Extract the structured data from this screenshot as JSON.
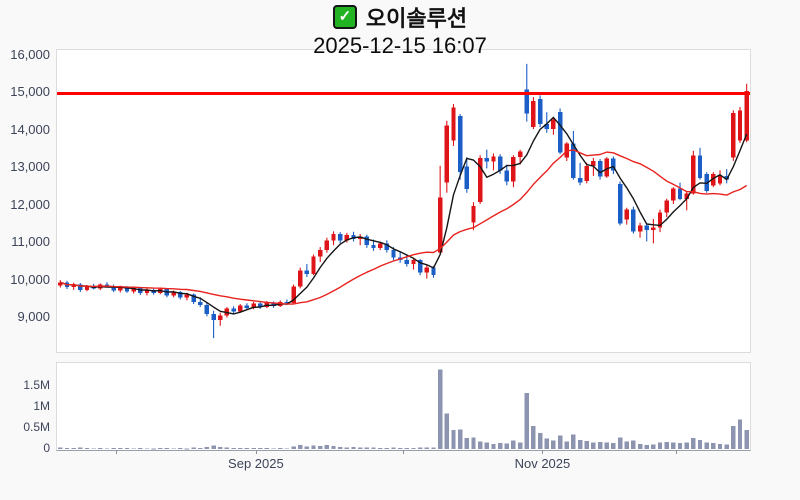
{
  "header": {
    "title": "오이솔루션",
    "subtitle": "2025-12-15 16:07",
    "checkbox_glyph": "✓"
  },
  "colors": {
    "background": "#f9f9f9",
    "panel_bg": "#ffffff",
    "panel_border": "#dcdcdc",
    "axis_text": "#3c4458",
    "up": "#df1418",
    "down": "#1b5ec6",
    "volume_bar": "#8c94b0",
    "ma_fast": "#161616",
    "ma_slow": "#e8231f",
    "alert_line": "#ff0000",
    "checkbox_green": "#22b322"
  },
  "chart_data": {
    "type": "candlestick-with-volume",
    "title": "오이솔루션",
    "timestamp": "2025-12-15 16:07",
    "legend_position": "none",
    "grid": false,
    "price_axis": {
      "tick_labels": [
        "16,000",
        "15,000",
        "14,000",
        "13,000",
        "12,000",
        "11,000",
        "10,000",
        "9,000"
      ],
      "tick_values": [
        16000,
        15000,
        14000,
        13000,
        12000,
        11000,
        10000,
        9000
      ],
      "y_min": 8100,
      "y_max": 16160
    },
    "volume_axis": {
      "tick_labels": [
        "1.5M",
        "1M",
        "0.5M",
        "0"
      ],
      "tick_values": [
        1500000,
        1000000,
        500000,
        0
      ],
      "v_max": 2050000
    },
    "x_axis": {
      "labels": [
        {
          "month": "09",
          "label": "Sep 2025"
        },
        {
          "month": "11",
          "label": "Nov 2025"
        }
      ]
    },
    "alert_line": {
      "price": 15000,
      "width": 3
    },
    "moving_averages": [
      {
        "name": "ma-fast",
        "window": 5
      },
      {
        "name": "ma-slow",
        "window": 20
      }
    ],
    "candles_format": [
      "date",
      "open",
      "high",
      "low",
      "close",
      "volume"
    ],
    "candles": [
      [
        "07-21",
        9870,
        10020,
        9820,
        9960,
        35000
      ],
      [
        "07-22",
        9960,
        10000,
        9780,
        9830,
        28000
      ],
      [
        "07-23",
        9830,
        9950,
        9760,
        9900,
        22000
      ],
      [
        "07-24",
        9900,
        9940,
        9700,
        9760,
        30000
      ],
      [
        "07-25",
        9760,
        9890,
        9720,
        9850,
        18000
      ],
      [
        "07-28",
        9850,
        9920,
        9770,
        9800,
        15000
      ],
      [
        "07-29",
        9800,
        9930,
        9750,
        9900,
        20000
      ],
      [
        "07-30",
        9900,
        9960,
        9820,
        9860,
        17000
      ],
      [
        "07-31",
        9860,
        9900,
        9700,
        9740,
        25000
      ],
      [
        "08-01",
        9740,
        9870,
        9690,
        9830,
        21000
      ],
      [
        "08-04",
        9830,
        9860,
        9680,
        9720,
        19000
      ],
      [
        "08-05",
        9720,
        9850,
        9660,
        9810,
        16000
      ],
      [
        "08-06",
        9810,
        9840,
        9620,
        9670,
        23000
      ],
      [
        "08-07",
        9670,
        9800,
        9610,
        9760,
        14000
      ],
      [
        "08-08",
        9760,
        9790,
        9630,
        9680,
        12000
      ],
      [
        "08-11",
        9680,
        9820,
        9640,
        9780,
        18000
      ],
      [
        "08-12",
        9780,
        9800,
        9560,
        9610,
        26000
      ],
      [
        "08-13",
        9610,
        9740,
        9560,
        9700,
        15000
      ],
      [
        "08-14",
        9700,
        9730,
        9500,
        9550,
        22000
      ],
      [
        "08-15",
        9550,
        9680,
        9480,
        9640,
        13000
      ],
      [
        "08-18",
        9640,
        9660,
        9380,
        9430,
        30000
      ],
      [
        "08-19",
        9430,
        9560,
        9300,
        9350,
        28000
      ],
      [
        "08-20",
        9350,
        9420,
        9050,
        9120,
        45000
      ],
      [
        "08-21",
        9120,
        9200,
        8470,
        8950,
        80000
      ],
      [
        "08-22",
        8950,
        9150,
        8800,
        9080,
        42000
      ],
      [
        "08-25",
        9080,
        9300,
        9020,
        9260,
        35000
      ],
      [
        "08-26",
        9260,
        9320,
        9120,
        9180,
        20000
      ],
      [
        "08-27",
        9180,
        9380,
        9150,
        9340,
        25000
      ],
      [
        "08-28",
        9340,
        9400,
        9230,
        9280,
        18000
      ],
      [
        "08-29",
        9280,
        9440,
        9240,
        9400,
        22000
      ],
      [
        "09-01",
        9400,
        9430,
        9250,
        9300,
        19000
      ],
      [
        "09-02",
        9300,
        9460,
        9270,
        9420,
        21000
      ],
      [
        "09-03",
        9420,
        9450,
        9280,
        9330,
        16000
      ],
      [
        "09-04",
        9330,
        9480,
        9300,
        9440,
        18000
      ],
      [
        "09-05",
        9440,
        9500,
        9350,
        9410,
        15000
      ],
      [
        "09-08",
        9410,
        9900,
        9400,
        9850,
        60000
      ],
      [
        "09-09",
        9850,
        10350,
        9800,
        10280,
        95000
      ],
      [
        "09-10",
        10280,
        10450,
        10100,
        10180,
        55000
      ],
      [
        "09-11",
        10180,
        10700,
        10150,
        10650,
        85000
      ],
      [
        "09-12",
        10650,
        10900,
        10500,
        10820,
        70000
      ],
      [
        "09-15",
        10820,
        11150,
        10750,
        11080,
        90000
      ],
      [
        "09-16",
        11080,
        11320,
        10950,
        11250,
        75000
      ],
      [
        "09-17",
        11250,
        11300,
        11000,
        11080,
        50000
      ],
      [
        "09-18",
        11080,
        11280,
        11020,
        11220,
        40000
      ],
      [
        "09-19",
        11220,
        11310,
        11050,
        11120,
        45000
      ],
      [
        "09-22",
        11120,
        11250,
        10950,
        11180,
        35000
      ],
      [
        "09-23",
        11180,
        11230,
        10880,
        10950,
        38000
      ],
      [
        "09-24",
        10950,
        11100,
        10800,
        10870,
        30000
      ],
      [
        "09-25",
        10870,
        11050,
        10820,
        11000,
        25000
      ],
      [
        "09-26",
        11000,
        11080,
        10750,
        10820,
        28000
      ],
      [
        "09-29",
        10820,
        10900,
        10550,
        10620,
        33000
      ],
      [
        "09-30",
        10620,
        10780,
        10480,
        10560,
        27000
      ],
      [
        "10-01",
        10560,
        10700,
        10380,
        10450,
        24000
      ],
      [
        "10-02",
        10450,
        10600,
        10300,
        10550,
        20000
      ],
      [
        "10-06",
        10550,
        10580,
        10150,
        10220,
        35000
      ],
      [
        "10-07",
        10220,
        10420,
        10060,
        10350,
        32000
      ],
      [
        "10-08",
        10350,
        10400,
        10080,
        10150,
        30000
      ],
      [
        "10-10",
        10750,
        13070,
        10700,
        12220,
        1900000
      ],
      [
        "10-13",
        12620,
        14270,
        12350,
        14140,
        850000
      ],
      [
        "10-14",
        13740,
        14720,
        13600,
        14620,
        450000
      ],
      [
        "10-15",
        14400,
        14450,
        12700,
        12900,
        470000
      ],
      [
        "10-16",
        13050,
        13300,
        12350,
        12450,
        260000
      ],
      [
        "10-17",
        11550,
        12100,
        11350,
        12000,
        280000
      ],
      [
        "10-20",
        12100,
        13350,
        12050,
        13280,
        180000
      ],
      [
        "10-21",
        13280,
        13500,
        13000,
        13180,
        150000
      ],
      [
        "10-22",
        13180,
        13400,
        12950,
        13320,
        120000
      ],
      [
        "10-23",
        13320,
        13380,
        12850,
        12950,
        140000
      ],
      [
        "10-24",
        12950,
        13100,
        12550,
        12650,
        130000
      ],
      [
        "10-27",
        12650,
        13350,
        12500,
        13300,
        200000
      ],
      [
        "10-28",
        13300,
        13500,
        13100,
        13450,
        160000
      ],
      [
        "10-29",
        15100,
        15790,
        14250,
        14460,
        1330000
      ],
      [
        "10-30",
        14100,
        14900,
        14050,
        14800,
        550000
      ],
      [
        "10-31",
        14855,
        14950,
        14100,
        14190,
        380000
      ],
      [
        "11-03",
        14190,
        14500,
        13950,
        14050,
        250000
      ],
      [
        "11-04",
        14050,
        14350,
        13900,
        14300,
        200000
      ],
      [
        "11-05",
        14500,
        14600,
        13380,
        13420,
        320000
      ],
      [
        "11-06",
        13290,
        13700,
        13200,
        13660,
        180000
      ],
      [
        "11-07",
        13660,
        14000,
        12700,
        12750,
        350000
      ],
      [
        "11-10",
        12750,
        13150,
        12550,
        12620,
        220000
      ],
      [
        "11-11",
        12670,
        13150,
        12600,
        13070,
        190000
      ],
      [
        "11-12",
        13070,
        13280,
        12800,
        13200,
        150000
      ],
      [
        "11-13",
        13200,
        13250,
        12700,
        12780,
        170000
      ],
      [
        "11-14",
        12780,
        13300,
        12750,
        13260,
        160000
      ],
      [
        "11-17",
        13260,
        13320,
        12850,
        12940,
        140000
      ],
      [
        "11-18",
        12590,
        12650,
        11480,
        11530,
        280000
      ],
      [
        "11-19",
        11640,
        11950,
        11500,
        11900,
        180000
      ],
      [
        "11-20",
        11900,
        11980,
        11260,
        11320,
        200000
      ],
      [
        "11-21",
        11320,
        11550,
        11150,
        11480,
        120000
      ],
      [
        "11-24",
        11480,
        11520,
        11050,
        11350,
        90000
      ],
      [
        "11-25",
        11350,
        11650,
        11000,
        11420,
        110000
      ],
      [
        "11-26",
        11420,
        11900,
        11300,
        11820,
        150000
      ],
      [
        "11-27",
        11820,
        12190,
        11700,
        12140,
        170000
      ],
      [
        "11-28",
        12140,
        12500,
        12050,
        12460,
        160000
      ],
      [
        "12-01",
        12460,
        12620,
        12150,
        12190,
        140000
      ],
      [
        "12-02",
        12190,
        12400,
        11880,
        12330,
        150000
      ],
      [
        "12-03",
        12330,
        13470,
        12300,
        13340,
        260000
      ],
      [
        "12-04",
        13340,
        13550,
        12700,
        12750,
        220000
      ],
      [
        "12-05",
        12850,
        12900,
        12350,
        12400,
        160000
      ],
      [
        "12-08",
        12550,
        12900,
        12500,
        12850,
        140000
      ],
      [
        "12-09",
        12600,
        12950,
        12550,
        12800,
        120000
      ],
      [
        "12-10",
        12800,
        12980,
        12600,
        12700,
        110000
      ],
      [
        "12-11",
        13290,
        14550,
        13200,
        14480,
        550000
      ],
      [
        "12-12",
        13740,
        14640,
        13680,
        14540,
        700000
      ],
      [
        "12-15",
        13740,
        15260,
        13700,
        15070,
        450000
      ]
    ]
  }
}
